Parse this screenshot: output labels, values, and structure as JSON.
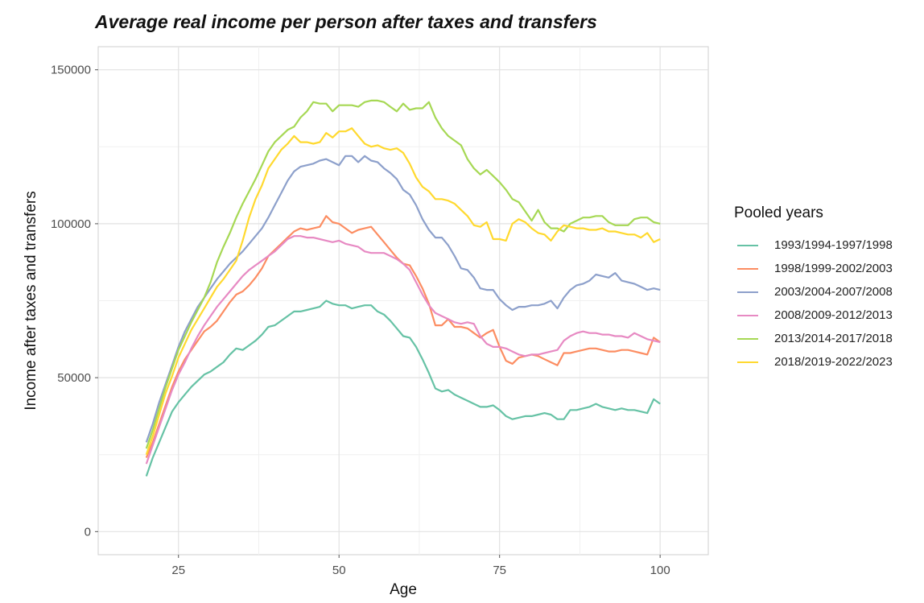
{
  "chart_data": {
    "type": "line",
    "title": "Average real income per person after taxes and transfers",
    "xlabel": "Age",
    "ylabel": "Income after taxes and transfers",
    "xlim": [
      12.5,
      107.5
    ],
    "ylim": [
      -7500,
      157500
    ],
    "x_ticks": [
      "25",
      "50",
      "75",
      "100"
    ],
    "y_ticks": [
      "0",
      "50000",
      "100000",
      "150000"
    ],
    "x_tick_values": [
      25,
      50,
      75,
      100
    ],
    "y_tick_values": [
      0,
      50000,
      100000,
      150000
    ],
    "grid": true,
    "legend_title": "Pooled years",
    "legend_position": "right",
    "x": [
      20,
      21,
      22,
      23,
      24,
      25,
      26,
      27,
      28,
      29,
      30,
      31,
      32,
      33,
      34,
      35,
      36,
      37,
      38,
      39,
      40,
      41,
      42,
      43,
      44,
      45,
      46,
      47,
      48,
      49,
      50,
      51,
      52,
      53,
      54,
      55,
      56,
      57,
      58,
      59,
      60,
      61,
      62,
      63,
      64,
      65,
      66,
      67,
      68,
      69,
      70,
      71,
      72,
      73,
      74,
      75,
      76,
      77,
      78,
      79,
      80,
      81,
      82,
      83,
      84,
      85,
      86,
      87,
      88,
      89,
      90,
      91,
      92,
      93,
      94,
      95,
      96,
      97,
      98,
      99,
      100
    ],
    "series": [
      {
        "name": "1993/1994-1997/1998",
        "color": "#66c2a5",
        "values": [
          18000,
          24000,
          29000,
          34000,
          39000,
          42000,
          44500,
          47000,
          49000,
          51000,
          52000,
          53500,
          55000,
          57500,
          59500,
          59000,
          60500,
          62000,
          64000,
          66500,
          67000,
          68500,
          70000,
          71500,
          71500,
          72000,
          72500,
          73000,
          75000,
          74000,
          73500,
          73500,
          72500,
          73000,
          73500,
          73500,
          71500,
          70500,
          68500,
          66000,
          63500,
          63000,
          60000,
          56000,
          51500,
          46500,
          45500,
          46000,
          44500,
          43500,
          42500,
          41500,
          40500,
          40500,
          41000,
          39500,
          37500,
          36500,
          37000,
          37500,
          37500,
          38000,
          38500,
          38000,
          36500,
          36500,
          39500,
          39500,
          40000,
          40500,
          41500,
          40500,
          40000,
          39500,
          40000,
          39500,
          39500,
          39000,
          38500,
          43000,
          41500
        ]
      },
      {
        "name": "1998/1999-2002/2003",
        "color": "#fc8d62",
        "values": [
          24000,
          29000,
          35000,
          41000,
          47000,
          52000,
          56000,
          59000,
          62000,
          65000,
          66500,
          68500,
          71500,
          74500,
          77000,
          78000,
          80000,
          82500,
          85500,
          89500,
          91500,
          93500,
          95500,
          97500,
          98500,
          98000,
          98500,
          99000,
          102500,
          100500,
          100000,
          98500,
          97000,
          98000,
          98500,
          99000,
          96500,
          94000,
          91500,
          89000,
          87000,
          86500,
          83000,
          79000,
          74000,
          67000,
          67000,
          69000,
          66500,
          66500,
          66000,
          64500,
          63000,
          64500,
          65500,
          60000,
          55500,
          54500,
          56500,
          57000,
          57500,
          57000,
          56000,
          55000,
          54000,
          58000,
          58000,
          58500,
          59000,
          59500,
          59500,
          59000,
          58500,
          58500,
          59000,
          59000,
          58500,
          58000,
          57500,
          63000,
          61500
        ]
      },
      {
        "name": "2003/2004-2007/2008",
        "color": "#8da0cb",
        "values": [
          29000,
          35000,
          42000,
          48000,
          54000,
          60000,
          65000,
          69000,
          73000,
          76000,
          79000,
          82000,
          84500,
          87000,
          89000,
          91000,
          93500,
          96000,
          98500,
          102000,
          106000,
          110000,
          114000,
          117000,
          118500,
          119000,
          119500,
          120500,
          121000,
          120000,
          119000,
          122000,
          122000,
          120000,
          122000,
          120500,
          120000,
          118000,
          116500,
          114500,
          111000,
          109500,
          106000,
          101500,
          98000,
          95500,
          95500,
          93000,
          89500,
          85500,
          85000,
          82500,
          79000,
          78500,
          78500,
          75500,
          73500,
          72000,
          73000,
          73000,
          73500,
          73500,
          74000,
          75000,
          72500,
          76000,
          78500,
          80000,
          80500,
          81500,
          83500,
          83000,
          82500,
          84000,
          81500,
          81000,
          80500,
          79500,
          78500,
          79000,
          78500
        ]
      },
      {
        "name": "2008/2009-2012/2013",
        "color": "#e78ac3",
        "values": [
          22000,
          28000,
          34000,
          40000,
          46000,
          51000,
          55000,
          59500,
          63500,
          67000,
          70000,
          73000,
          75500,
          78000,
          80500,
          83000,
          85000,
          86500,
          88000,
          89500,
          91000,
          93000,
          95000,
          96000,
          96000,
          95500,
          95500,
          95000,
          94500,
          94000,
          94500,
          93500,
          93000,
          92500,
          91000,
          90500,
          90500,
          90500,
          89500,
          88500,
          87000,
          85000,
          81000,
          77000,
          73500,
          71000,
          70000,
          69000,
          68000,
          67500,
          68000,
          67500,
          63500,
          61000,
          60000,
          60000,
          59500,
          58500,
          57500,
          57000,
          57500,
          57500,
          58000,
          58500,
          59000,
          62000,
          63500,
          64500,
          65000,
          64500,
          64500,
          64000,
          64000,
          63500,
          63500,
          63000,
          64500,
          63500,
          62500,
          62000,
          61500
        ]
      },
      {
        "name": "2013/2014-2017/2018",
        "color": "#a6d854",
        "values": [
          27000,
          33000,
          40000,
          47000,
          53000,
          59000,
          63500,
          68000,
          72000,
          76000,
          81000,
          87500,
          92500,
          97000,
          102000,
          106500,
          110500,
          114500,
          119000,
          123500,
          126500,
          128500,
          130500,
          131500,
          134500,
          136500,
          139500,
          139000,
          139000,
          136500,
          138500,
          138500,
          138500,
          138000,
          139500,
          140000,
          140000,
          139500,
          138000,
          136500,
          139000,
          137000,
          137500,
          137500,
          139500,
          134500,
          131000,
          128500,
          127000,
          125500,
          121000,
          118000,
          116000,
          117500,
          115500,
          113500,
          111000,
          108000,
          107000,
          104000,
          101000,
          104500,
          100500,
          98500,
          98500,
          97500,
          100000,
          101000,
          102000,
          102000,
          102500,
          102500,
          100500,
          99500,
          99500,
          99500,
          101500,
          102000,
          102000,
          100500,
          100000
        ]
      },
      {
        "name": "2018/2019-2022/2023",
        "color": "#ffd92f",
        "values": [
          25000,
          31000,
          38000,
          45000,
          50500,
          56500,
          61000,
          65500,
          69000,
          72500,
          76000,
          79500,
          82000,
          85000,
          88000,
          94500,
          102000,
          108000,
          112500,
          118000,
          121000,
          124000,
          126000,
          128500,
          126500,
          126500,
          126000,
          126500,
          129500,
          128000,
          130000,
          130000,
          131000,
          128500,
          126000,
          125000,
          125500,
          124500,
          124000,
          124500,
          123000,
          119500,
          115000,
          112000,
          110500,
          108000,
          108000,
          107500,
          106500,
          104500,
          102500,
          99500,
          99000,
          100500,
          95000,
          95000,
          94500,
          100000,
          101500,
          100500,
          98500,
          97000,
          96500,
          94500,
          97500,
          99500,
          99000,
          98500,
          98500,
          98000,
          98000,
          98500,
          97500,
          97500,
          97000,
          96500,
          96500,
          95500,
          97000,
          94000,
          95000
        ]
      }
    ]
  }
}
